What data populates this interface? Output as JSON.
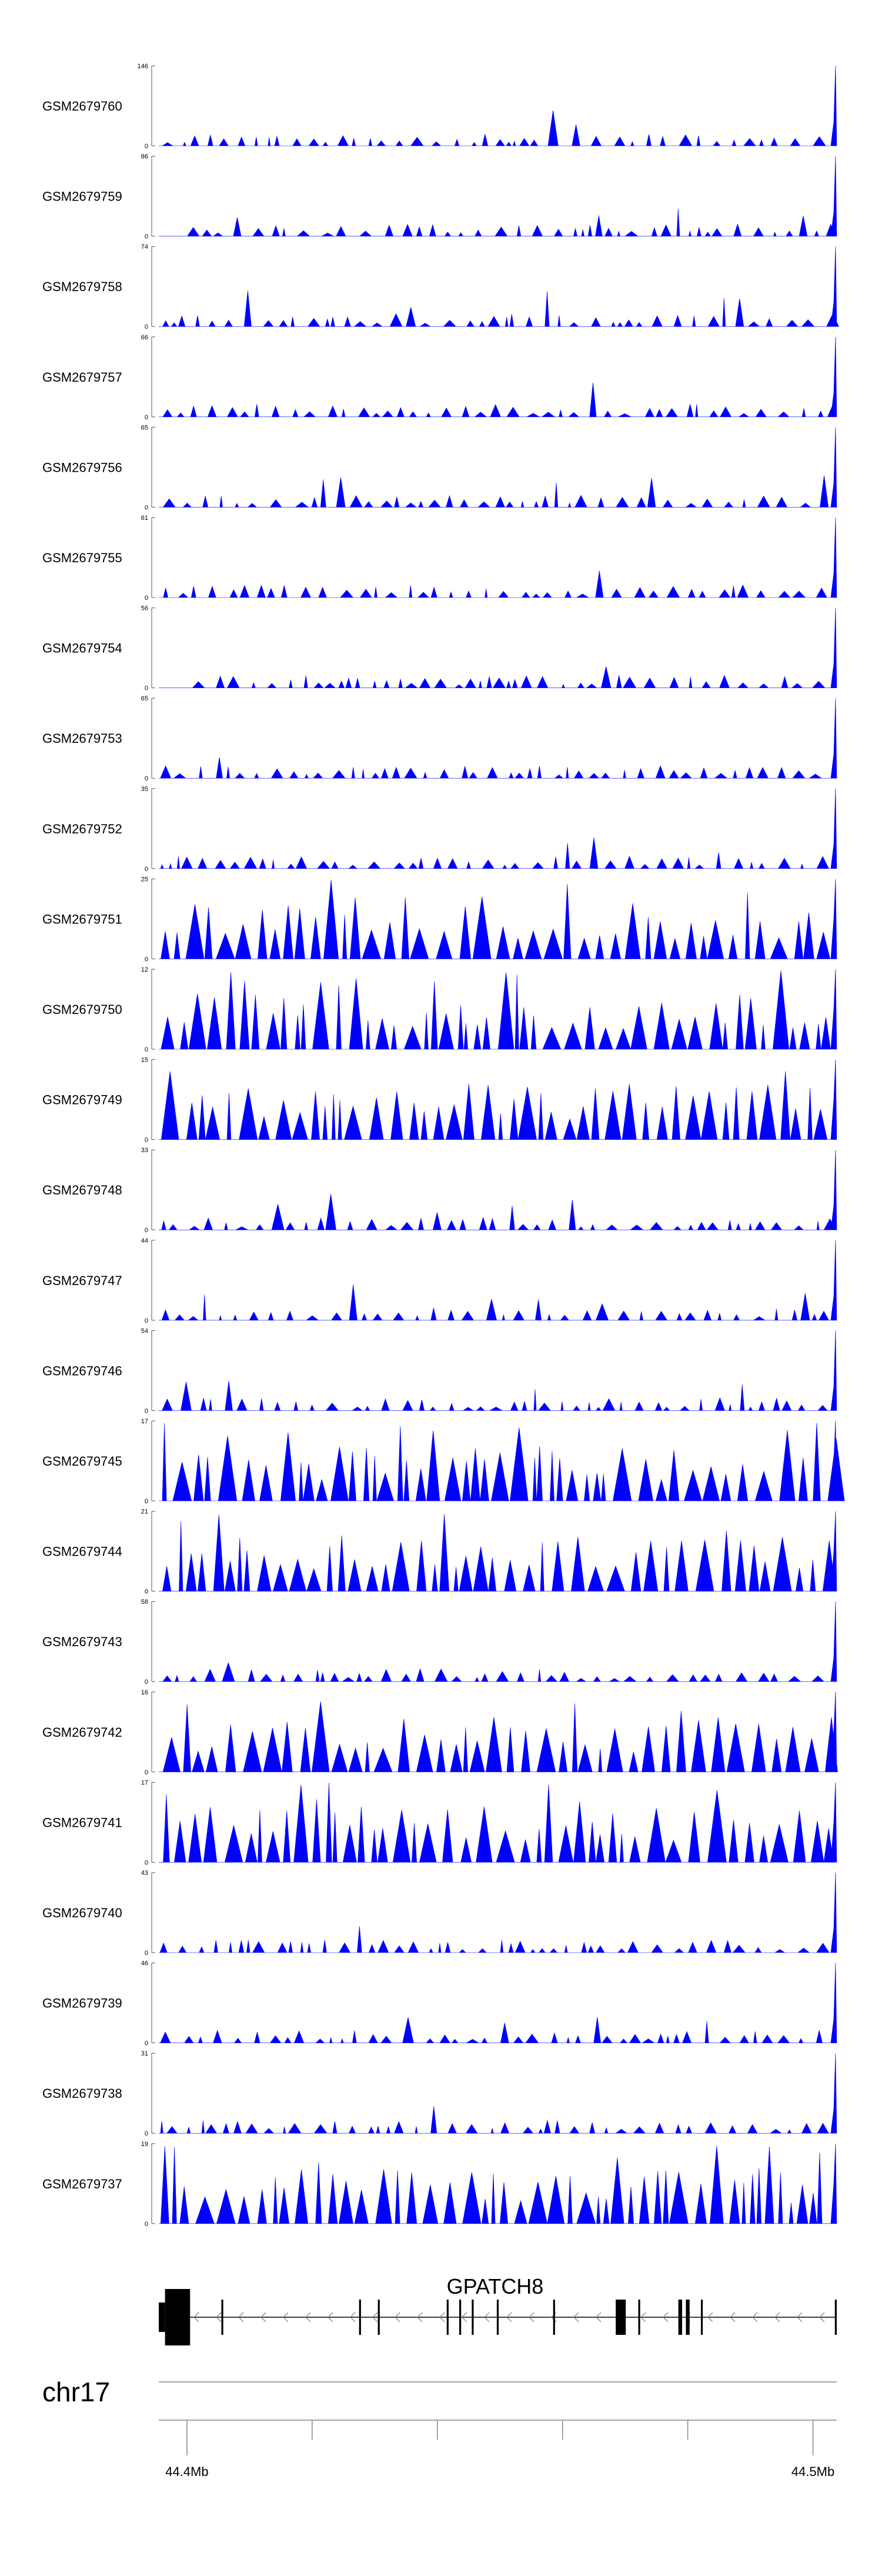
{
  "chart_data": {
    "type": "area",
    "colors": {
      "signal": "#0000ff",
      "axis": "#000000",
      "gene": "#000000"
    },
    "tracks": [
      {
        "name": "GSM2679760",
        "max": 146,
        "min": 0
      },
      {
        "name": "GSM2679759",
        "max": 86,
        "min": 0
      },
      {
        "name": "GSM2679758",
        "max": 74,
        "min": 0
      },
      {
        "name": "GSM2679757",
        "max": 66,
        "min": 0
      },
      {
        "name": "GSM2679756",
        "max": 65,
        "min": 0
      },
      {
        "name": "GSM2679755",
        "max": 61,
        "min": 0
      },
      {
        "name": "GSM2679754",
        "max": 56,
        "min": 0
      },
      {
        "name": "GSM2679753",
        "max": 65,
        "min": 0
      },
      {
        "name": "GSM2679752",
        "max": 35,
        "min": 0
      },
      {
        "name": "GSM2679751",
        "max": 25,
        "min": 0
      },
      {
        "name": "GSM2679750",
        "max": 12,
        "min": 0
      },
      {
        "name": "GSM2679749",
        "max": 15,
        "min": 0
      },
      {
        "name": "GSM2679748",
        "max": 33,
        "min": 0
      },
      {
        "name": "GSM2679747",
        "max": 44,
        "min": 0
      },
      {
        "name": "GSM2679746",
        "max": 54,
        "min": 0
      },
      {
        "name": "GSM2679745",
        "max": 17,
        "min": 0
      },
      {
        "name": "GSM2679744",
        "max": 21,
        "min": 0
      },
      {
        "name": "GSM2679743",
        "max": 58,
        "min": 0
      },
      {
        "name": "GSM2679742",
        "max": 16,
        "min": 0
      },
      {
        "name": "GSM2679741",
        "max": 17,
        "min": 0
      },
      {
        "name": "GSM2679740",
        "max": 43,
        "min": 0
      },
      {
        "name": "GSM2679739",
        "max": 46,
        "min": 0
      },
      {
        "name": "GSM2679738",
        "max": 31,
        "min": 0
      },
      {
        "name": "GSM2679737",
        "max": 19,
        "min": 0
      }
    ],
    "gene": {
      "name": "GPATCH8",
      "strand": "-",
      "exons_mb": [
        [
          44.3955,
          44.3965
        ],
        [
          44.3965,
          44.4005
        ],
        [
          44.4055,
          44.4058
        ],
        [
          44.4275,
          44.4278
        ],
        [
          44.4305,
          44.4308
        ],
        [
          44.4415,
          44.4418
        ],
        [
          44.4435,
          44.4438
        ],
        [
          44.4455,
          44.4458
        ],
        [
          44.4495,
          44.4498
        ],
        [
          44.4585,
          44.4588
        ],
        [
          44.4685,
          44.4701
        ],
        [
          44.4721,
          44.4724
        ],
        [
          44.4785,
          44.4791
        ],
        [
          44.4797,
          44.4803
        ],
        [
          44.4821,
          44.4824
        ],
        [
          44.5035,
          44.5038
        ]
      ]
    },
    "genome_axis": {
      "chromosome": "chr17",
      "xlim_mb": [
        44.3955,
        44.5038
      ],
      "ticks_mb": [
        44.4,
        44.42,
        44.44,
        44.46,
        44.48,
        44.5
      ],
      "tick_labels": [
        "44.4Mb",
        "",
        "",
        "",
        "",
        "44.5Mb"
      ]
    }
  }
}
